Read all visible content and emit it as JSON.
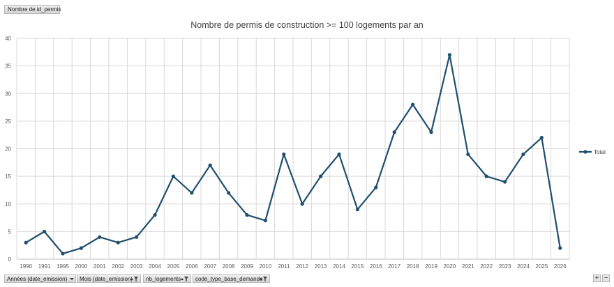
{
  "pivot": {
    "value_field": "Nombre de id_permis",
    "axis_fields": [
      {
        "label": "Années (date_emission)",
        "dropdown_icon": "dropdown-arrow-icon"
      },
      {
        "label": "Mois (date_emission)",
        "dropdown_icon": "filter-icon"
      },
      {
        "label": "nb_logements",
        "dropdown_icon": "filter-icon"
      },
      {
        "label": "code_type_base_demande",
        "dropdown_icon": "filter-icon"
      }
    ],
    "zoom_in_label": "+",
    "zoom_out_label": "−"
  },
  "chart_data": {
    "type": "line",
    "title": "Nombre de permis de construction >= 100 logements par an",
    "categories": [
      "1990",
      "1991",
      "1995",
      "2000",
      "2001",
      "2002",
      "2003",
      "2004",
      "2005",
      "2006",
      "2007",
      "2008",
      "2009",
      "2010",
      "2011",
      "2012",
      "2013",
      "2014",
      "2015",
      "2016",
      "2017",
      "2018",
      "2019",
      "2020",
      "2021",
      "2022",
      "2023",
      "2024",
      "2025",
      "2026"
    ],
    "series": [
      {
        "name": "Total",
        "values": [
          3,
          5,
          1,
          2,
          4,
          3,
          4,
          8,
          15,
          12,
          17,
          12,
          8,
          7,
          19,
          10,
          15,
          19,
          9,
          13,
          23,
          28,
          23,
          37,
          19,
          15,
          14,
          19,
          22,
          2
        ]
      }
    ],
    "ylim": [
      0,
      40
    ],
    "yticks": [
      0,
      5,
      10,
      15,
      20,
      25,
      30,
      35,
      40
    ],
    "grid": true,
    "legend_position": "right",
    "line_color": "#1f4e6e",
    "grid_color": "#d9d9d9"
  }
}
